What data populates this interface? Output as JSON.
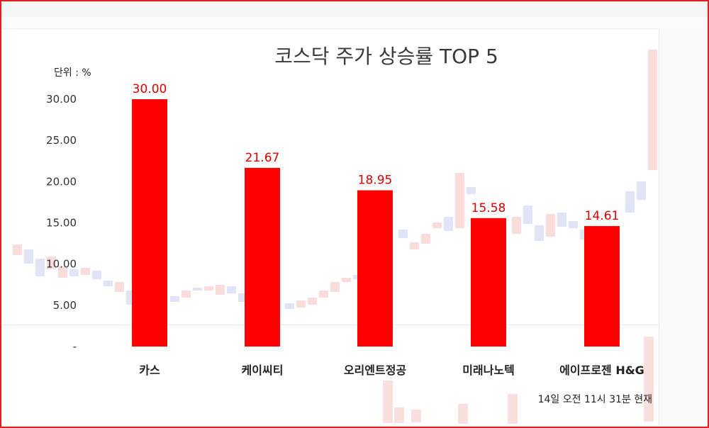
{
  "chart_data": {
    "type": "bar",
    "title": "코스닥 주가 상승률 TOP 5",
    "unit_label": "단위 : %",
    "categories": [
      "카스",
      "케이씨티",
      "오리엔트정공",
      "미래나노텍",
      "에이프로젠 H&G"
    ],
    "values": [
      30.0,
      21.67,
      18.95,
      15.58,
      14.61
    ],
    "value_labels": [
      "30.00",
      "21.67",
      "18.95",
      "15.58",
      "14.61"
    ],
    "ylim": [
      0,
      35
    ],
    "yticks": [
      0,
      5,
      10,
      15,
      20,
      25,
      30
    ],
    "ytick_labels": [
      "-",
      "5.00",
      "10.00",
      "15.00",
      "20.00",
      "25.00",
      "30.00"
    ],
    "bar_color": "#ff0000",
    "label_color": "#e00000",
    "grid": false,
    "legend": "none",
    "footnote": "14일 오전 11시 31분 현재"
  }
}
